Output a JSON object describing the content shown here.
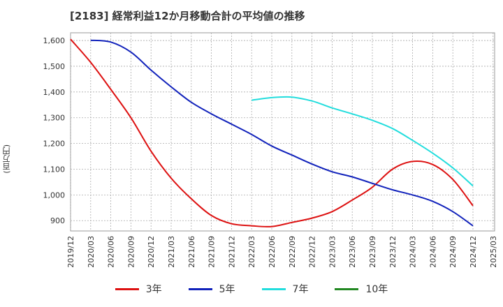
{
  "title": "[2183]  経常利益12か月移動合計の平均値の推移",
  "ylabel": "(百万円)",
  "chart_data": {
    "type": "line",
    "title": "[2183]  経常利益12か月移動合計の平均値の推移",
    "ylabel": "(百万円)",
    "xlabel": "",
    "ylim": [
      860,
      1630
    ],
    "yticks": [
      900,
      1000,
      1100,
      1200,
      1300,
      1400,
      1500,
      1600
    ],
    "ytick_labels": [
      "900",
      "1,000",
      "1,100",
      "1,200",
      "1,300",
      "1,400",
      "1,500",
      "1,600"
    ],
    "x_ticks": [
      "2019/12",
      "2020/03",
      "2020/06",
      "2020/09",
      "2020/12",
      "2021/03",
      "2021/06",
      "2021/09",
      "2021/12",
      "2022/03",
      "2022/06",
      "2022/09",
      "2022/12",
      "2023/03",
      "2023/06",
      "2023/09",
      "2023/12",
      "2024/03",
      "2024/06",
      "2024/09",
      "2024/12",
      "2025/03"
    ],
    "grid": true,
    "legend_position": "bottom",
    "series": [
      {
        "name": "3年",
        "color": "#dd1111",
        "x": [
          "2019/12",
          "2020/03",
          "2020/06",
          "2020/09",
          "2020/12",
          "2021/03",
          "2021/06",
          "2021/09",
          "2021/12",
          "2022/03",
          "2022/06",
          "2022/09",
          "2022/12",
          "2023/03",
          "2023/06",
          "2023/09",
          "2023/12",
          "2024/03",
          "2024/06",
          "2024/09",
          "2024/12"
        ],
        "values": [
          1605,
          1515,
          1410,
          1300,
          1170,
          1065,
          985,
          920,
          888,
          880,
          877,
          893,
          910,
          935,
          980,
          1030,
          1100,
          1130,
          1118,
          1060,
          958
        ]
      },
      {
        "name": "5年",
        "color": "#1122bb",
        "x": [
          "2020/03",
          "2020/06",
          "2020/09",
          "2020/12",
          "2021/03",
          "2021/06",
          "2021/09",
          "2021/12",
          "2022/03",
          "2022/06",
          "2022/09",
          "2022/12",
          "2023/03",
          "2023/06",
          "2023/09",
          "2023/12",
          "2024/03",
          "2024/06",
          "2024/09",
          "2024/12"
        ],
        "values": [
          1601,
          1594,
          1555,
          1485,
          1420,
          1360,
          1315,
          1275,
          1235,
          1190,
          1155,
          1120,
          1090,
          1070,
          1045,
          1020,
          1000,
          975,
          935,
          880
        ]
      },
      {
        "name": "7年",
        "color": "#22dddd",
        "x": [
          "2022/03",
          "2022/06",
          "2022/09",
          "2022/12",
          "2023/03",
          "2023/06",
          "2023/09",
          "2023/12",
          "2024/03",
          "2024/06",
          "2024/09",
          "2024/12"
        ],
        "values": [
          1368,
          1378,
          1380,
          1365,
          1338,
          1315,
          1290,
          1258,
          1212,
          1162,
          1105,
          1035
        ]
      },
      {
        "name": "10年",
        "color": "#228822",
        "x": [],
        "values": []
      }
    ]
  }
}
